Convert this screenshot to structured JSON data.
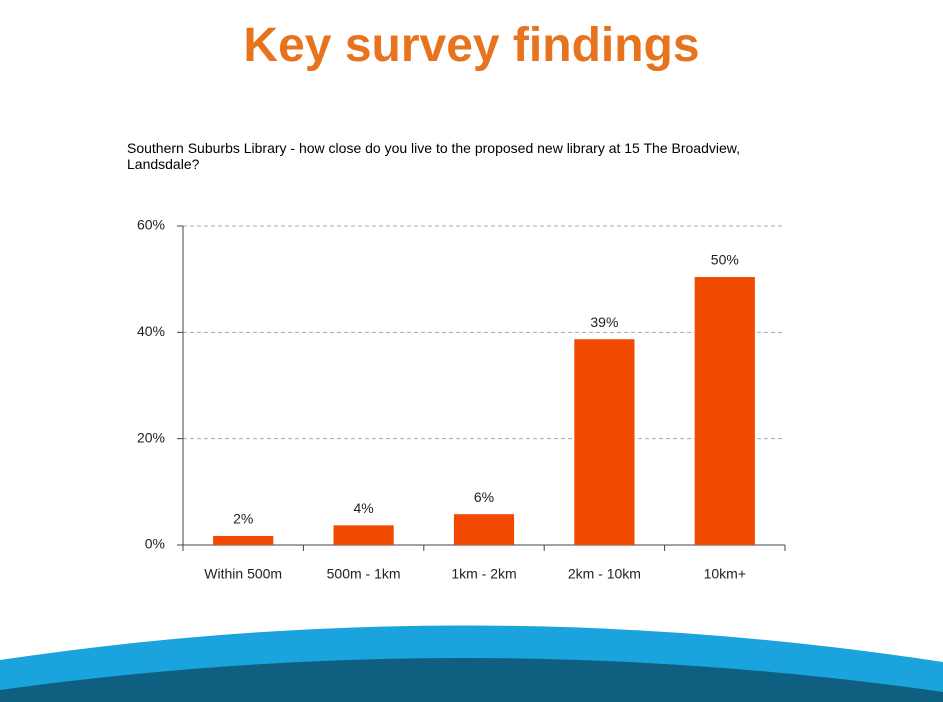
{
  "title": "Key survey findings",
  "chart_data": {
    "type": "bar",
    "title": "Southern Suburbs Library - how close do you live to the proposed new library at 15 The Broadview, Landsdale?",
    "categories": [
      "Within 500m",
      "500m - 1km",
      "1km - 2km",
      "2km - 10km",
      "10km+"
    ],
    "values": [
      1.7,
      3.7,
      5.8,
      38.7,
      50.4
    ],
    "value_labels": [
      "2%",
      "4%",
      "6%",
      "39%",
      "50%"
    ],
    "color": "#f24a00",
    "ylim": [
      0,
      60
    ],
    "yticks": [
      {
        "value": 0,
        "label": "0%"
      },
      {
        "value": 20,
        "label": "20%"
      },
      {
        "value": 40,
        "label": "40%"
      },
      {
        "value": 60,
        "label": "60%"
      }
    ],
    "grid": true
  }
}
